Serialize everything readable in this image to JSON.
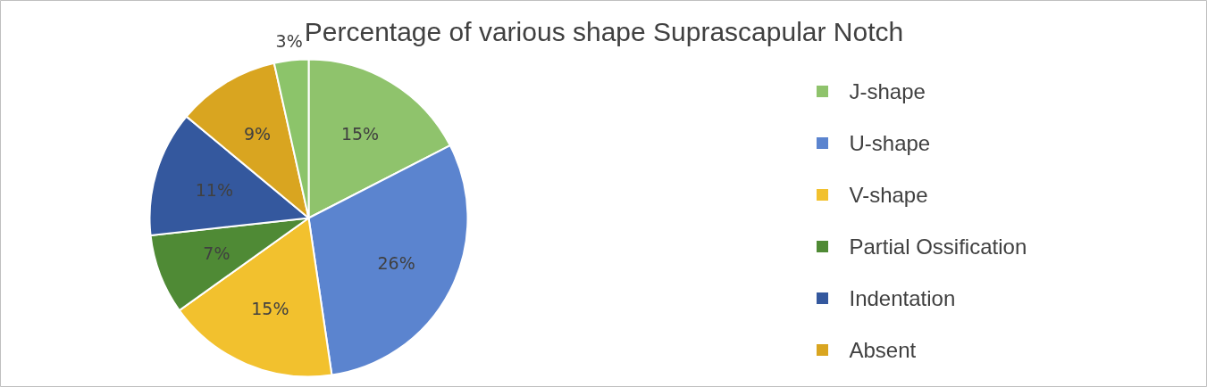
{
  "chart_data": {
    "type": "pie",
    "title": "Percentage of various shape Suprascapular Notch",
    "categories": [
      "J-shape",
      "U-shape",
      "V-shape",
      "Partial Ossification",
      "Indentation",
      "Absent",
      null
    ],
    "values": [
      15,
      26,
      15,
      7,
      11,
      9,
      3
    ],
    "colors": [
      "#8fc36c",
      "#5b84cf",
      "#f2c12e",
      "#4f8a35",
      "#34589e",
      "#d9a520",
      "#8cc46a"
    ],
    "value_labels": [
      "15%",
      "26%",
      "15%",
      "7%",
      "11%",
      "9%",
      "3%"
    ],
    "legend": "right"
  }
}
